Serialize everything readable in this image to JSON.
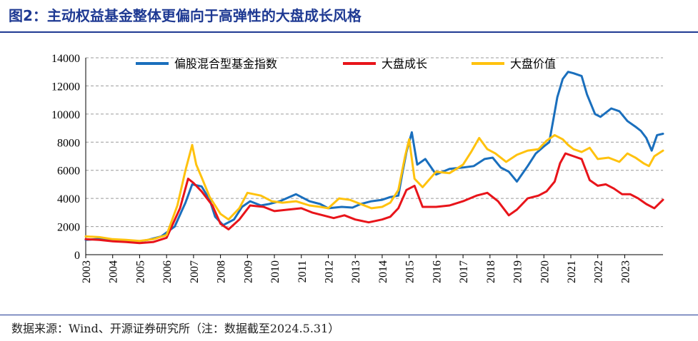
{
  "title": "图2：主动权益基金整体更偏向于高弹性的大盘成长风格",
  "source": "数据来源：Wind、开源证券研究所（注：数据截至2024.5.31）",
  "colors": {
    "title": "#1f3a93",
    "grid": "#9a9a9a",
    "axis": "#000000"
  },
  "chart_data": {
    "type": "line",
    "ylim": [
      0,
      14000
    ],
    "yticks": [
      0,
      2000,
      4000,
      6000,
      8000,
      10000,
      12000,
      14000
    ],
    "xlim": [
      2003.0,
      2024.42
    ],
    "xticks": [
      "2003",
      "2004",
      "2005",
      "2006",
      "2007",
      "2008",
      "2009",
      "2010",
      "2011",
      "2012",
      "2013",
      "2014",
      "2015",
      "2016",
      "2017",
      "2018",
      "2019",
      "2020",
      "2021",
      "2022",
      "2023"
    ],
    "grid": true,
    "legend_position": "top",
    "series": [
      {
        "name": "偏股混合型基金指数",
        "color": "#1a6fbd",
        "x": [
          2003.0,
          2003.5,
          2004.0,
          2004.4,
          2004.9,
          2005.3,
          2005.8,
          2006.3,
          2006.7,
          2006.95,
          2007.3,
          2007.6,
          2007.8,
          2008.1,
          2008.5,
          2008.8,
          2009.1,
          2009.5,
          2009.8,
          2010.2,
          2010.8,
          2011.3,
          2011.7,
          2012.0,
          2012.5,
          2012.9,
          2013.2,
          2013.6,
          2014.0,
          2014.3,
          2014.6,
          2014.75,
          2014.9,
          2015.1,
          2015.3,
          2015.6,
          2016.0,
          2016.5,
          2017.0,
          2017.4,
          2017.8,
          2018.1,
          2018.4,
          2018.7,
          2019.0,
          2019.4,
          2019.7,
          2020.0,
          2020.2,
          2020.35,
          2020.5,
          2020.7,
          2020.9,
          2021.1,
          2021.4,
          2021.6,
          2021.9,
          2022.1,
          2022.5,
          2022.8,
          2023.1,
          2023.4,
          2023.6,
          2023.8,
          2024.0,
          2024.2,
          2024.42
        ],
        "values": [
          1050,
          1120,
          1080,
          1000,
          930,
          1050,
          1300,
          2000,
          3700,
          5000,
          4850,
          3900,
          2700,
          2100,
          2500,
          3400,
          3800,
          3500,
          3600,
          3800,
          4300,
          3800,
          3600,
          3300,
          3400,
          3350,
          3600,
          3800,
          3900,
          4100,
          4200,
          5800,
          7300,
          8700,
          6400,
          6800,
          5700,
          6100,
          6200,
          6300,
          6800,
          6900,
          6200,
          5900,
          5200,
          6300,
          7200,
          7700,
          8000,
          9600,
          11200,
          12500,
          13000,
          12900,
          12700,
          11400,
          10000,
          9800,
          10400,
          10200,
          9500,
          9100,
          8800,
          8300,
          7400,
          8500,
          8600
        ]
      },
      {
        "name": "大盘成长",
        "color": "#e8141a",
        "x": [
          2003.0,
          2003.5,
          2004.0,
          2004.5,
          2005.0,
          2005.5,
          2006.0,
          2006.5,
          2006.8,
          2007.0,
          2007.3,
          2007.7,
          2008.0,
          2008.3,
          2008.7,
          2009.1,
          2009.6,
          2010.0,
          2010.5,
          2011.0,
          2011.4,
          2011.8,
          2012.2,
          2012.6,
          2013.0,
          2013.5,
          2014.0,
          2014.3,
          2014.6,
          2014.9,
          2015.2,
          2015.5,
          2016.0,
          2016.5,
          2017.0,
          2017.5,
          2017.9,
          2018.3,
          2018.7,
          2019.0,
          2019.4,
          2019.8,
          2020.1,
          2020.4,
          2020.6,
          2020.8,
          2021.1,
          2021.4,
          2021.7,
          2022.0,
          2022.3,
          2022.6,
          2022.9,
          2023.2,
          2023.5,
          2023.8,
          2024.1,
          2024.42
        ],
        "values": [
          1100,
          1050,
          950,
          900,
          820,
          900,
          1200,
          3300,
          5400,
          5100,
          4500,
          3500,
          2200,
          1800,
          2500,
          3500,
          3400,
          3100,
          3200,
          3300,
          3000,
          2800,
          2600,
          2800,
          2500,
          2300,
          2500,
          2700,
          3300,
          4600,
          4900,
          3400,
          3400,
          3500,
          3800,
          4200,
          4400,
          3800,
          2800,
          3200,
          4000,
          4200,
          4500,
          5200,
          6500,
          7200,
          7000,
          6800,
          5300,
          4900,
          5000,
          4700,
          4300,
          4300,
          4000,
          3600,
          3300,
          3900
        ]
      },
      {
        "name": "大盘价值",
        "color": "#ffc20e",
        "x": [
          2003.0,
          2003.5,
          2004.0,
          2004.5,
          2005.0,
          2005.5,
          2006.0,
          2006.4,
          2006.7,
          2006.95,
          2007.1,
          2007.3,
          2007.6,
          2008.0,
          2008.3,
          2008.7,
          2009.0,
          2009.5,
          2009.9,
          2010.3,
          2010.8,
          2011.3,
          2011.7,
          2012.0,
          2012.4,
          2012.8,
          2013.2,
          2013.6,
          2014.0,
          2014.3,
          2014.6,
          2014.85,
          2015.0,
          2015.2,
          2015.5,
          2016.0,
          2016.5,
          2017.0,
          2017.3,
          2017.6,
          2017.9,
          2018.2,
          2018.6,
          2019.0,
          2019.4,
          2019.8,
          2020.1,
          2020.4,
          2020.7,
          2020.9,
          2021.1,
          2021.4,
          2021.7,
          2022.0,
          2022.4,
          2022.8,
          2023.1,
          2023.4,
          2023.7,
          2023.9,
          2024.1,
          2024.42
        ],
        "values": [
          1300,
          1250,
          1100,
          1050,
          980,
          1100,
          1400,
          3500,
          6000,
          7800,
          6400,
          5500,
          4100,
          2900,
          2500,
          3300,
          4400,
          4200,
          3800,
          3700,
          3800,
          3500,
          3400,
          3300,
          4000,
          3900,
          3600,
          3300,
          3400,
          3700,
          4600,
          7000,
          8200,
          5400,
          4800,
          5900,
          5800,
          6400,
          7300,
          8300,
          7500,
          7200,
          6600,
          7100,
          7400,
          7500,
          8100,
          8500,
          8200,
          7800,
          7500,
          7300,
          7600,
          6800,
          6900,
          6600,
          7200,
          6900,
          6500,
          6300,
          7000,
          7400
        ]
      }
    ]
  }
}
